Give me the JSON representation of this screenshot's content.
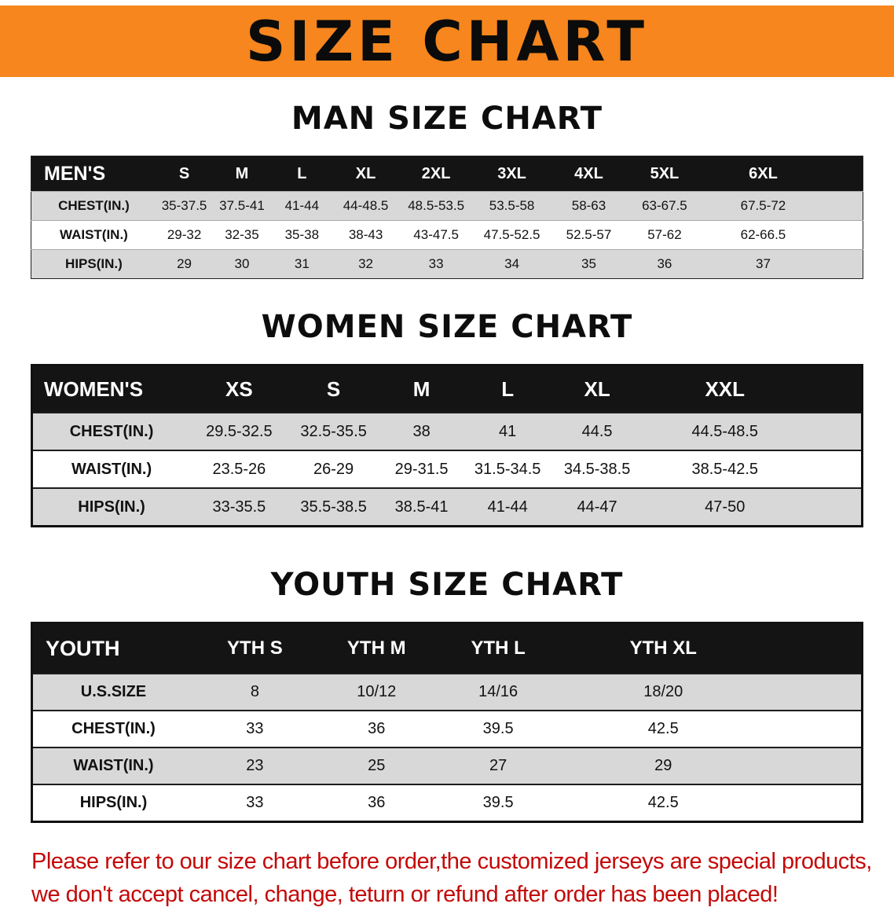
{
  "banner": {
    "title": "SIZE CHART"
  },
  "colors": {
    "banner_bg": "#F6861D",
    "table_header_bg": "#141414",
    "row_alt_gray": "#d8d8d8",
    "note_red": "#C40808"
  },
  "sections": {
    "men": {
      "heading": "MAN SIZE CHART",
      "header": [
        "MEN'S",
        "S",
        "M",
        "L",
        "XL",
        "2XL",
        "3XL",
        "4XL",
        "5XL",
        "6XL"
      ],
      "rows": [
        [
          "CHEST(IN.)",
          "35-37.5",
          "37.5-41",
          "41-44",
          "44-48.5",
          "48.5-53.5",
          "53.5-58",
          "58-63",
          "63-67.5",
          "67.5-72"
        ],
        [
          "WAIST(IN.)",
          "29-32",
          "32-35",
          "35-38",
          "38-43",
          "43-47.5",
          "47.5-52.5",
          "52.5-57",
          "57-62",
          "62-66.5"
        ],
        [
          "HIPS(IN.)",
          "29",
          "30",
          "31",
          "32",
          "33",
          "34",
          "35",
          "36",
          "37"
        ]
      ]
    },
    "women": {
      "heading": "WOMEN SIZE CHART",
      "header": [
        "WOMEN'S",
        "XS",
        "S",
        "M",
        "L",
        "XL",
        "XXL"
      ],
      "rows": [
        [
          "CHEST(IN.)",
          "29.5-32.5",
          "32.5-35.5",
          "38",
          "41",
          "44.5",
          "44.5-48.5"
        ],
        [
          "WAIST(IN.)",
          "23.5-26",
          "26-29",
          "29-31.5",
          "31.5-34.5",
          "34.5-38.5",
          "38.5-42.5"
        ],
        [
          "HIPS(IN.)",
          "33-35.5",
          "35.5-38.5",
          "38.5-41",
          "41-44",
          "44-47",
          "47-50"
        ]
      ]
    },
    "youth": {
      "heading": "YOUTH SIZE CHART",
      "header": [
        "YOUTH",
        "YTH S",
        "YTH M",
        "YTH L",
        "YTH XL"
      ],
      "rows": [
        [
          "U.S.SIZE",
          "8",
          "10/12",
          "14/16",
          "18/20"
        ],
        [
          "CHEST(IN.)",
          "33",
          "36",
          "39.5",
          "42.5"
        ],
        [
          "WAIST(IN.)",
          "23",
          "25",
          "27",
          "29"
        ],
        [
          "HIPS(IN.)",
          "33",
          "36",
          "39.5",
          "42.5"
        ]
      ]
    }
  },
  "note": {
    "line1": "Please refer to our size chart before order,the customized jerseys are special products,",
    "line2": "we don't accept cancel, change, teturn or refund after order has been placed!"
  }
}
